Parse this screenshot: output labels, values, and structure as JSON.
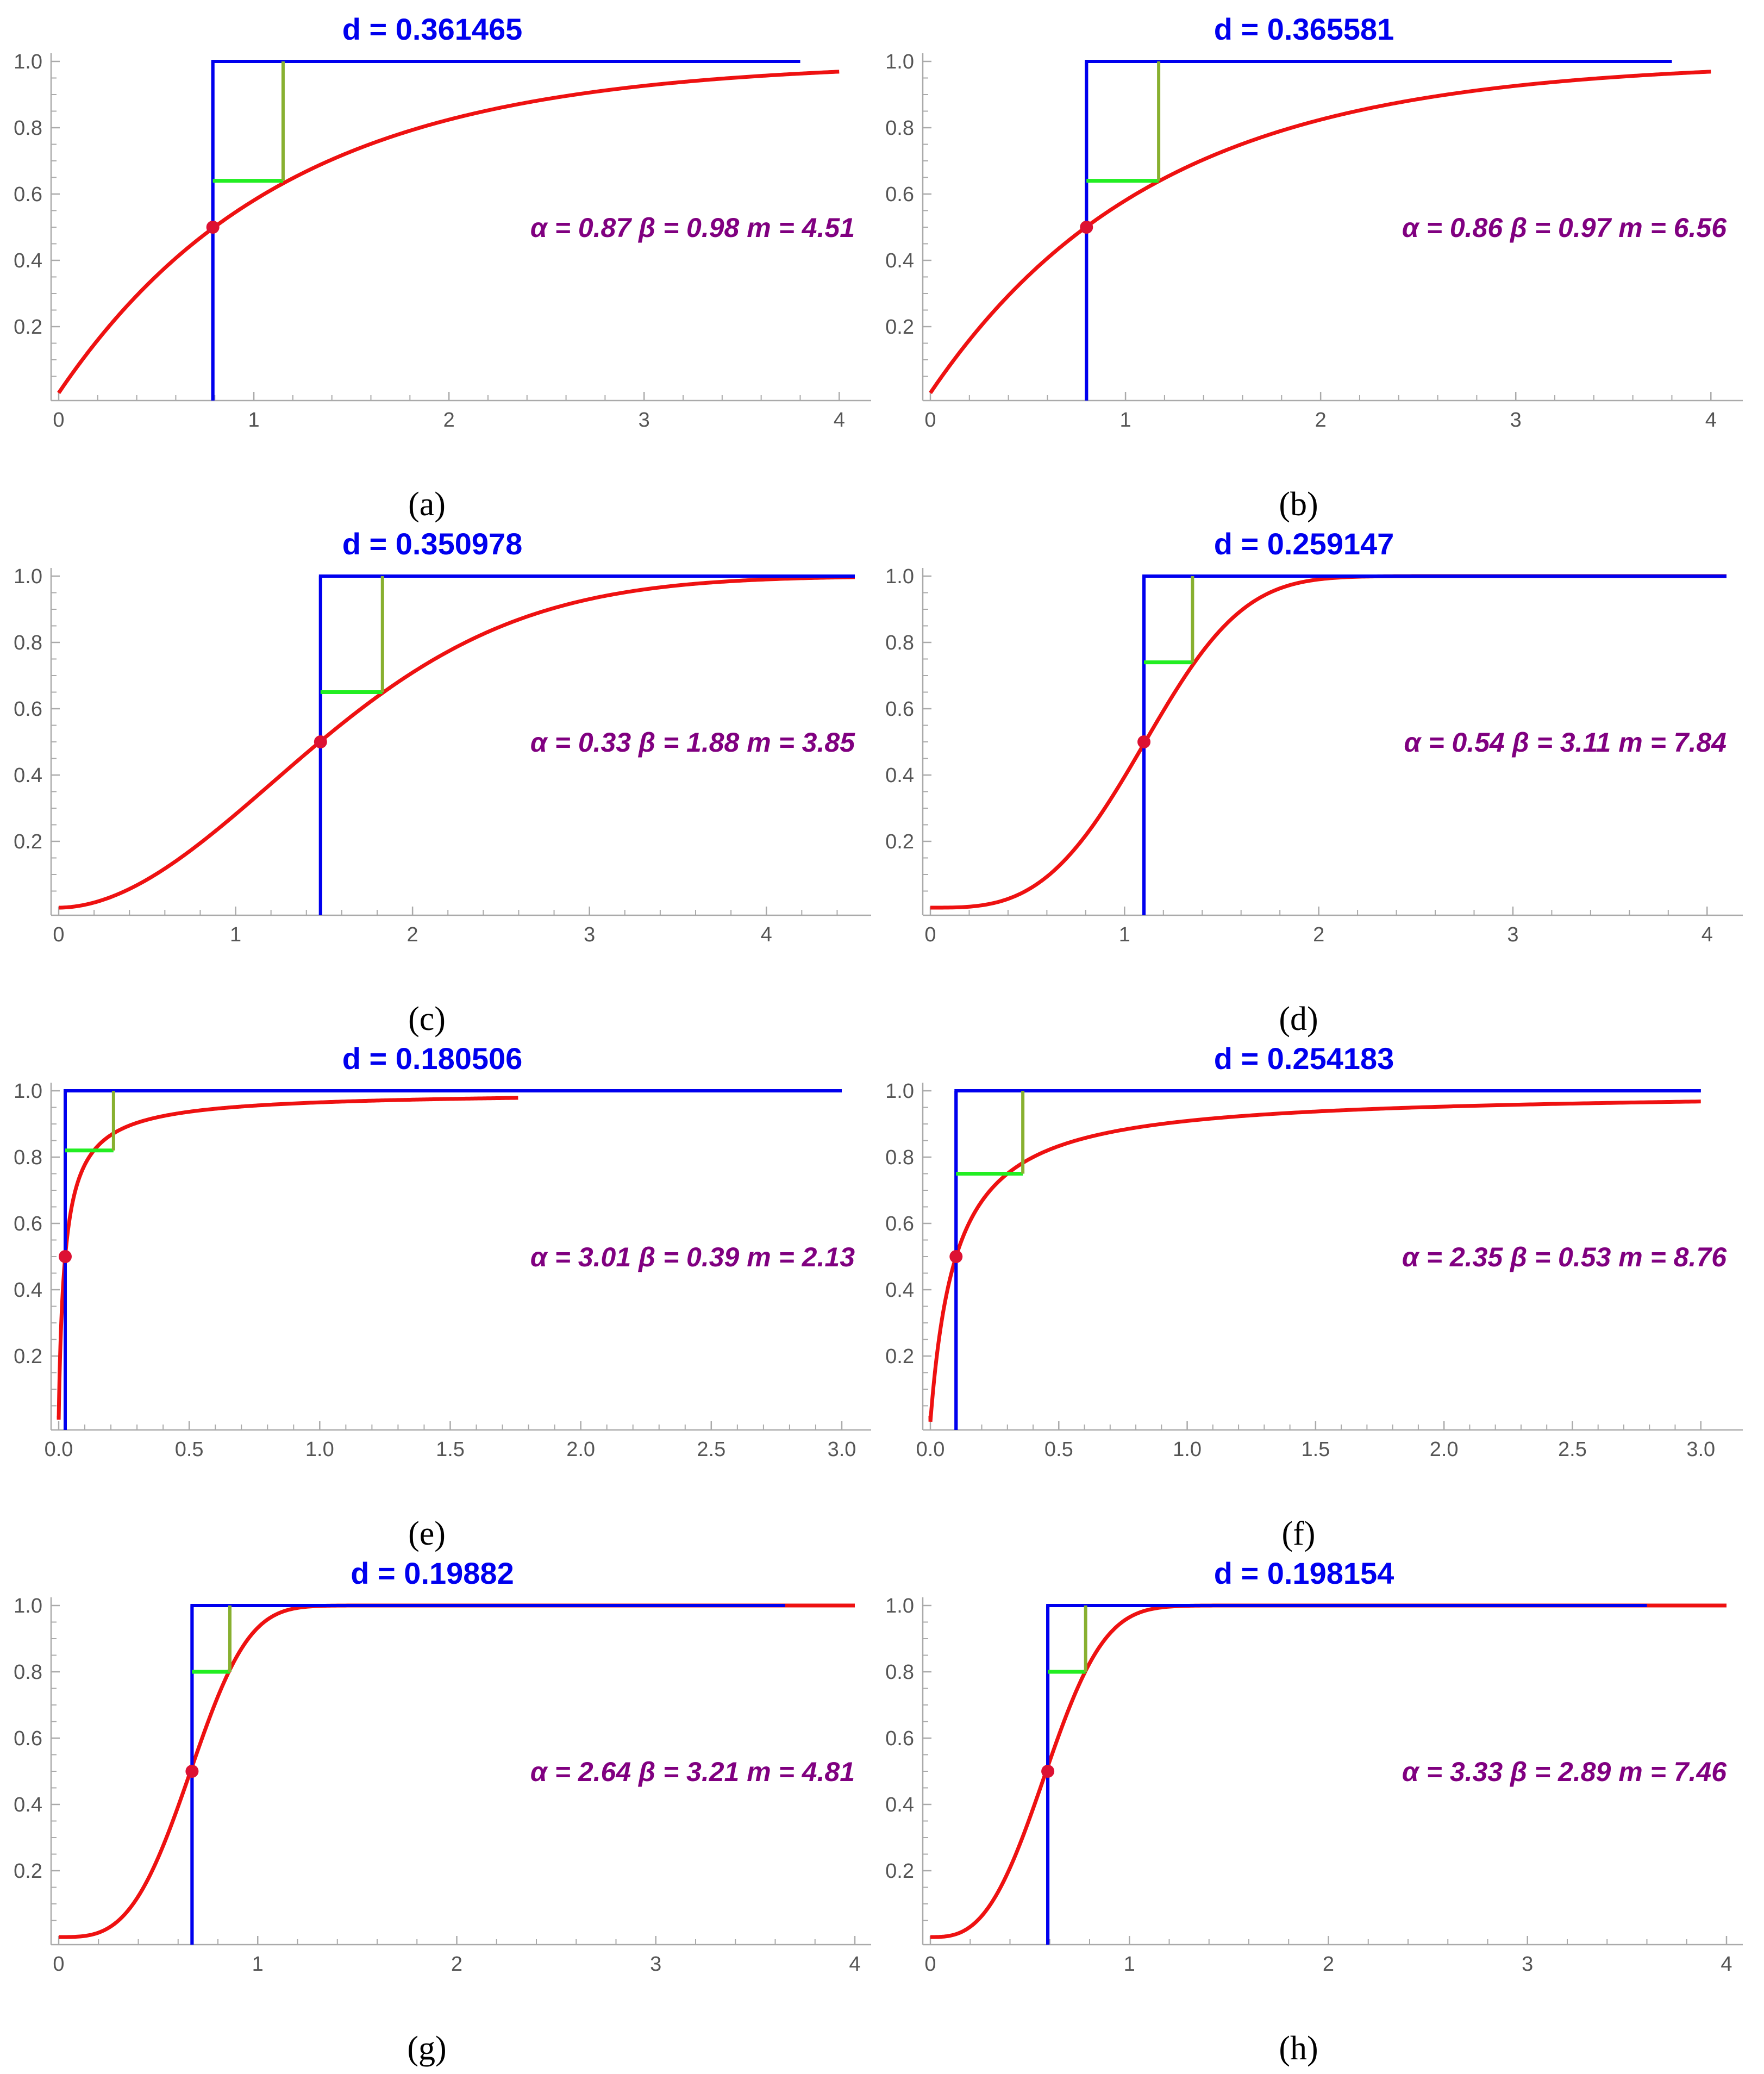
{
  "colors": {
    "cdf": "#ee1111",
    "step": "#0000ee",
    "gap_vertical": "#88b030",
    "gap_horizontal": "#22ee22",
    "median_dot": "#dd1133",
    "title": "#0000ee",
    "params": "#800080",
    "axis": "#aaaaaa",
    "tick_label": "#555555"
  },
  "chart_data": [
    {
      "label": "a",
      "caption": "(a)",
      "type": "line",
      "title": "d = 0.361465",
      "params_text": "α = 0.87  β = 0.98   m = 4.51",
      "alpha": 0.87,
      "beta": 0.98,
      "m": 4.51,
      "curve_type": "weibull",
      "scale": 1.15,
      "median_x": 0.79,
      "gap_x": 1.15,
      "gap_y": 0.64,
      "step_end": 3.8,
      "curve_start": 0,
      "curve_end": 4.0,
      "xlim": [
        0,
        4.08
      ],
      "ylim": [
        0,
        1.0
      ],
      "xticks": [
        "0",
        "1",
        "2",
        "3",
        "4"
      ],
      "xtick_values": [
        0,
        1,
        2,
        3,
        4
      ],
      "yticks": [
        "0.2",
        "0.4",
        "0.6",
        "0.8",
        "1.0"
      ],
      "ytick_values": [
        0.2,
        0.4,
        0.6,
        0.8,
        1.0
      ]
    },
    {
      "label": "b",
      "caption": "(b)",
      "type": "line",
      "title": "d = 0.365581",
      "params_text": "α = 0.86  β = 0.97   m = 6.56",
      "alpha": 0.86,
      "beta": 0.97,
      "m": 6.56,
      "curve_type": "weibull",
      "scale": 1.15,
      "median_x": 0.8,
      "gap_x": 1.17,
      "gap_y": 0.64,
      "step_end": 3.8,
      "curve_start": 0,
      "curve_end": 4.0,
      "xlim": [
        0,
        4.08
      ],
      "ylim": [
        0,
        1.0
      ],
      "xticks": [
        "0",
        "1",
        "2",
        "3",
        "4"
      ],
      "xtick_values": [
        0,
        1,
        2,
        3,
        4
      ],
      "yticks": [
        "0.2",
        "0.4",
        "0.6",
        "0.8",
        "1.0"
      ],
      "ytick_values": [
        0.2,
        0.4,
        0.6,
        0.8,
        1.0
      ]
    },
    {
      "label": "c",
      "caption": "(c)",
      "type": "line",
      "title": "d = 0.350978",
      "params_text": "α = 0.33  β = 1.88   m = 3.85",
      "alpha": 0.33,
      "beta": 1.88,
      "m": 3.85,
      "curve_type": "weibull",
      "scale": 1.79,
      "median_x": 1.48,
      "gap_x": 1.83,
      "gap_y": 0.65,
      "step_end": 4.5,
      "curve_start": 0,
      "curve_end": 4.5,
      "xlim": [
        0,
        4.5
      ],
      "ylim": [
        0,
        1.0
      ],
      "xticks": [
        "0",
        "1",
        "2",
        "3",
        "4"
      ],
      "xtick_values": [
        0,
        1,
        2,
        3,
        4
      ],
      "yticks": [
        "0.2",
        "0.4",
        "0.6",
        "0.8",
        "1.0"
      ],
      "ytick_values": [
        0.2,
        0.4,
        0.6,
        0.8,
        1.0
      ]
    },
    {
      "label": "d",
      "caption": "(d)",
      "type": "line",
      "title": "d = 0.259147",
      "params_text": "α = 0.54  β = 3.11   m = 7.84",
      "alpha": 0.54,
      "beta": 3.11,
      "m": 7.84,
      "curve_type": "weibull",
      "scale": 1.24,
      "median_x": 1.1,
      "gap_x": 1.35,
      "gap_y": 0.74,
      "step_end": 4.1,
      "curve_start": 0,
      "curve_end": 4.1,
      "xlim": [
        0,
        4.1
      ],
      "ylim": [
        0,
        1.0
      ],
      "xticks": [
        "0",
        "1",
        "2",
        "3",
        "4"
      ],
      "xtick_values": [
        0,
        1,
        2,
        3,
        4
      ],
      "yticks": [
        "0.2",
        "0.4",
        "0.6",
        "0.8",
        "1.0"
      ],
      "ytick_values": [
        0.2,
        0.4,
        0.6,
        0.8,
        1.0
      ]
    },
    {
      "label": "e",
      "caption": "(e)",
      "type": "line",
      "title": "d = 0.180506",
      "params_text": "α = 3.01  β = 0.39   m = 2.13",
      "alpha": 3.01,
      "beta": 0.39,
      "m": 2.13,
      "curve_type": "loglogistic",
      "scale": 0.025,
      "shape": 0.9,
      "median_x": 0.025,
      "gap_x": 0.21,
      "gap_y": 0.82,
      "step_end": 3.0,
      "curve_start": 0.0,
      "curve_end": 1.76,
      "xlim": [
        0,
        3.05
      ],
      "ylim": [
        0,
        1.0
      ],
      "xticks": [
        "0.0",
        "0.5",
        "1.0",
        "1.5",
        "2.0",
        "2.5",
        "3.0"
      ],
      "xtick_values": [
        0,
        0.5,
        1.0,
        1.5,
        2.0,
        2.5,
        3.0
      ],
      "yticks": [
        "0.2",
        "0.4",
        "0.6",
        "0.8",
        "1.0"
      ],
      "ytick_values": [
        0.2,
        0.4,
        0.6,
        0.8,
        1.0
      ]
    },
    {
      "label": "f",
      "caption": "(f)",
      "type": "line",
      "title": "d = 0.254183",
      "params_text": "α = 2.35  β = 0.53   m = 8.76",
      "alpha": 2.35,
      "beta": 0.53,
      "m": 8.76,
      "curve_type": "loglogistic",
      "scale": 0.1,
      "shape": 1.0,
      "median_x": 0.1,
      "gap_x": 0.36,
      "gap_y": 0.75,
      "step_end": 3.0,
      "curve_start": 0.0,
      "curve_end": 3.0,
      "xlim": [
        0,
        3.1
      ],
      "ylim": [
        0,
        1.0
      ],
      "xticks": [
        "0.0",
        "0.5",
        "1.0",
        "1.5",
        "2.0",
        "2.5",
        "3.0"
      ],
      "xtick_values": [
        0,
        0.5,
        1.0,
        1.5,
        2.0,
        2.5,
        3.0
      ],
      "yticks": [
        "0.2",
        "0.4",
        "0.6",
        "0.8",
        "1.0"
      ],
      "ytick_values": [
        0.2,
        0.4,
        0.6,
        0.8,
        1.0
      ]
    },
    {
      "label": "g",
      "caption": "(g)",
      "type": "line",
      "title": "d = 0.19882",
      "params_text": "α = 2.64  β = 3.21   m = 4.81",
      "alpha": 2.64,
      "beta": 3.21,
      "m": 4.81,
      "curve_type": "weibull",
      "scale": 0.74,
      "median_x": 0.67,
      "gap_x": 0.86,
      "gap_y": 0.8,
      "step_end": 3.65,
      "curve_start": 0,
      "curve_end": 4.0,
      "xlim": [
        0,
        4.0
      ],
      "ylim": [
        0,
        1.0
      ],
      "xticks": [
        "0",
        "1",
        "2",
        "3",
        "4"
      ],
      "xtick_values": [
        0,
        1,
        2,
        3,
        4
      ],
      "yticks": [
        "0.2",
        "0.4",
        "0.6",
        "0.8",
        "1.0"
      ],
      "ytick_values": [
        0.2,
        0.4,
        0.6,
        0.8,
        1.0
      ]
    },
    {
      "label": "h",
      "caption": "(h)",
      "type": "line",
      "title": "d = 0.198154",
      "params_text": "α = 3.33  β = 2.89   m = 7.46",
      "alpha": 3.33,
      "beta": 2.89,
      "m": 7.46,
      "curve_type": "weibull",
      "scale": 0.66,
      "median_x": 0.59,
      "gap_x": 0.78,
      "gap_y": 0.8,
      "step_end": 3.6,
      "curve_start": 0,
      "curve_end": 4.0,
      "xlim": [
        0,
        4.0
      ],
      "ylim": [
        0,
        1.0
      ],
      "xticks": [
        "0",
        "1",
        "2",
        "3",
        "4"
      ],
      "xtick_values": [
        0,
        1,
        2,
        3,
        4
      ],
      "yticks": [
        "0.2",
        "0.4",
        "0.6",
        "0.8",
        "1.0"
      ],
      "ytick_values": [
        0.2,
        0.4,
        0.6,
        0.8,
        1.0
      ]
    }
  ]
}
